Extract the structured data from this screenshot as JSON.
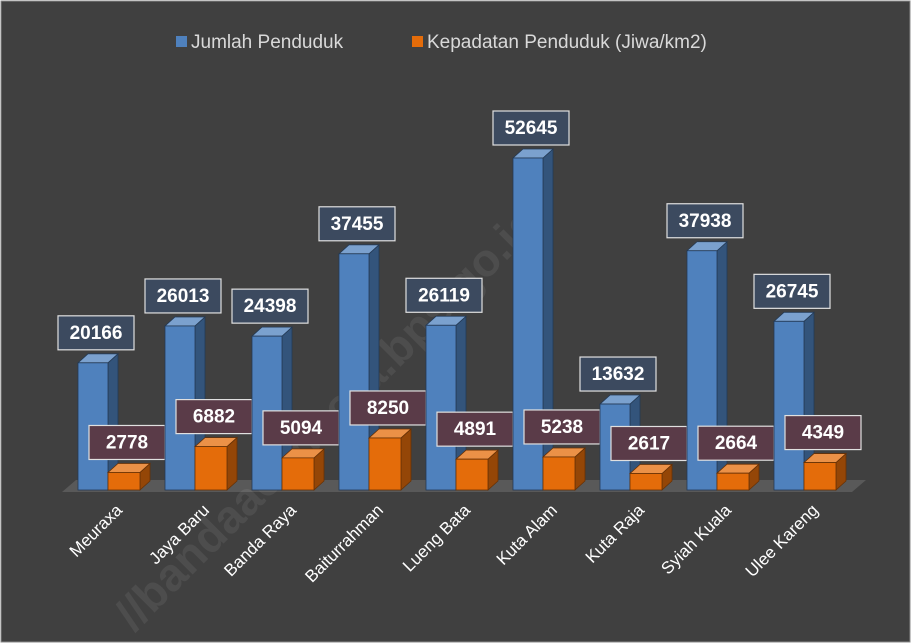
{
  "chart_data": {
    "type": "bar3d",
    "categories": [
      "Meuraxa",
      "Jaya Baru",
      "Banda Raya",
      "Baiturrahman",
      "Lueng Bata",
      "Kuta Alam",
      "Kuta Raja",
      "Syiah Kuala",
      "Ulee Kareng"
    ],
    "series": [
      {
        "name": "Jumlah Penduduk",
        "color": "#4f81bd",
        "values": [
          20166,
          26013,
          24398,
          37455,
          26119,
          52645,
          13632,
          37938,
          26745
        ]
      },
      {
        "name": "Kepadatan Penduduk (Jiwa/km2)",
        "color": "#e46c0a",
        "values": [
          2778,
          6882,
          5094,
          8250,
          4891,
          5238,
          2617,
          2664,
          4349
        ]
      }
    ],
    "legend": "top",
    "watermark": "//bandaacehkota.bps.go.id"
  }
}
